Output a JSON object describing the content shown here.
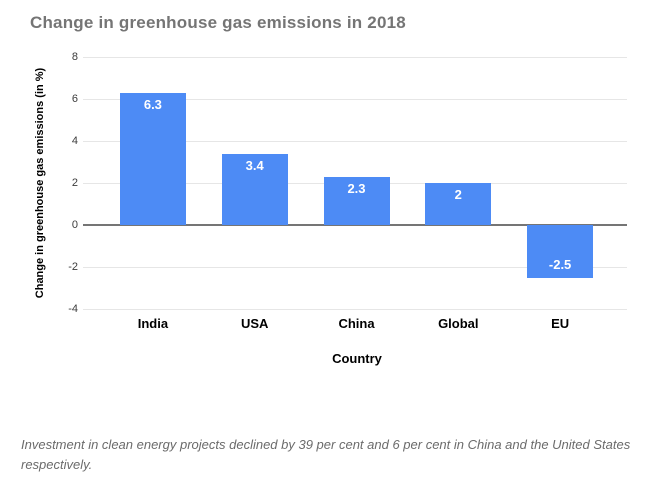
{
  "title": "Change in greenhouse gas emissions in 2018",
  "chart_data": {
    "type": "bar",
    "title": "Change in greenhouse gas emissions in 2018",
    "categories": [
      "India",
      "USA",
      "China",
      "Global",
      "EU"
    ],
    "values": [
      6.3,
      3.4,
      2.3,
      2,
      -2.5
    ],
    "value_labels": [
      "6.3",
      "3.4",
      "2.3",
      "2",
      "-2.5"
    ],
    "xlabel": "Country",
    "ylabel": "Change in greenhouse gas emissions (in %)",
    "ylim": [
      -4,
      8
    ],
    "yticks": [
      8,
      6,
      4,
      2,
      0,
      -2,
      -4
    ],
    "grid": true,
    "legend": "none"
  },
  "footnote": "Investment in clean energy projects declined by 39 per cent and 6 per cent in China and the United States respectively.",
  "colors": {
    "background": "#ffffff",
    "bar": "#4d8bf5",
    "bar_label": "#ffffff",
    "title": "#757575",
    "axis_text": "#000000",
    "tick_text": "#3c3c3c",
    "gridline": "#e6e6e6",
    "zero_line": "#757575",
    "footnote": "#6b6b6b"
  }
}
